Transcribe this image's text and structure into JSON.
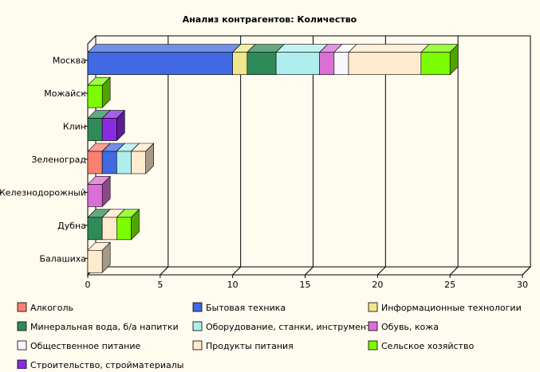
{
  "chart_data": {
    "type": "bar",
    "orientation": "horizontal",
    "stacked": true,
    "style": "3d",
    "title": "Анализ контрагентов: Количество",
    "xlabel": "",
    "ylabel": "",
    "xlim": [
      0,
      30
    ],
    "x_ticks": [
      0,
      5,
      10,
      15,
      20,
      25,
      30
    ],
    "grid": true,
    "legend_position": "bottom",
    "categories": [
      "Москва",
      "Можайск",
      "Клин",
      "Зеленоград",
      "Железнодорожный",
      "Дубна",
      "Балашиха"
    ],
    "series": [
      {
        "name": "Алкоголь",
        "color": "#fa8072",
        "values": [
          0,
          0,
          0,
          1,
          0,
          0,
          0
        ]
      },
      {
        "name": "Бытовая техника",
        "color": "#4169e1",
        "values": [
          10,
          0,
          0,
          1,
          0,
          0,
          0
        ]
      },
      {
        "name": "Информационные технологии",
        "color": "#f0e68c",
        "values": [
          1,
          0,
          0,
          0,
          0,
          0,
          0
        ]
      },
      {
        "name": "Минеральная вода, б/а напитки",
        "color": "#2e8b57",
        "values": [
          2,
          0,
          1,
          0,
          0,
          1,
          0
        ]
      },
      {
        "name": "Оборудование, станки, инструмент",
        "color": "#afeeee",
        "values": [
          3,
          0,
          0,
          1,
          0,
          0,
          0
        ]
      },
      {
        "name": "Обувь, кожа",
        "color": "#da70d6",
        "values": [
          1,
          0,
          0,
          0,
          1,
          0,
          0
        ]
      },
      {
        "name": "Общественное питание",
        "color": "#f8f8ff",
        "values": [
          1,
          0,
          0,
          0,
          0,
          0,
          0
        ]
      },
      {
        "name": "Продукты питания",
        "color": "#ffebcd",
        "values": [
          5,
          0,
          0,
          1,
          0,
          1,
          1
        ]
      },
      {
        "name": "Сельское хозяйство",
        "color": "#7cfc00",
        "values": [
          2,
          1,
          0,
          0,
          0,
          1,
          0
        ]
      },
      {
        "name": "Строительство, стройматериалы",
        "color": "#8a2be2",
        "values": [
          0,
          0,
          1,
          0,
          0,
          0,
          0
        ]
      }
    ]
  }
}
